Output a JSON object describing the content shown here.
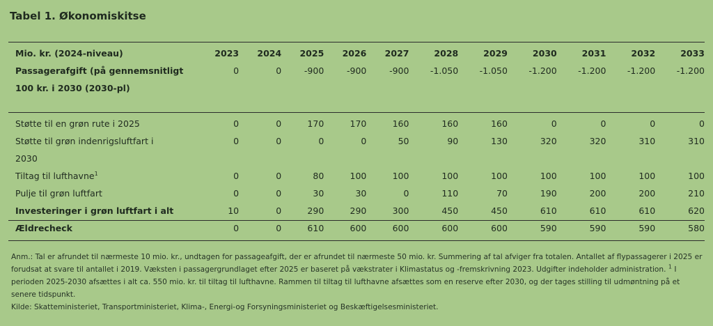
{
  "title": "Tabel 1. Økonomiskitse",
  "table": {
    "unit_label": "Mio. kr. (2024-niveau)",
    "years": [
      "2023",
      "2024",
      "2025",
      "2026",
      "2027",
      "2028",
      "2029",
      "2030",
      "2031",
      "2032",
      "2033"
    ],
    "rows": [
      {
        "label": "Passagerafgift (på gennemsnitligt",
        "label2": "100 kr. i 2030 (2030-pl)",
        "values": [
          "0",
          "0",
          "-900",
          "-900",
          "-900",
          "-1.050",
          "-1.050",
          "-1.200",
          "-1.200",
          "-1.200",
          "-1.200"
        ]
      },
      {
        "label": "Støtte til en grøn rute i 2025",
        "values": [
          "0",
          "0",
          "170",
          "170",
          "160",
          "160",
          "160",
          "0",
          "0",
          "0",
          "0"
        ]
      },
      {
        "label": "Støtte til grøn indenrigsluftfart i",
        "label2": "2030",
        "values": [
          "0",
          "0",
          "0",
          "0",
          "50",
          "90",
          "130",
          "320",
          "320",
          "310",
          "310"
        ]
      },
      {
        "label": "Tiltag til lufthavne",
        "sup": "1",
        "values": [
          "0",
          "0",
          "80",
          "100",
          "100",
          "100",
          "100",
          "100",
          "100",
          "100",
          "100"
        ]
      },
      {
        "label": "Pulje til grøn luftfart",
        "values": [
          "0",
          "0",
          "30",
          "30",
          "0",
          "110",
          "70",
          "190",
          "200",
          "200",
          "210"
        ]
      },
      {
        "label": "Investeringer i grøn luftfart i alt",
        "values": [
          "10",
          "0",
          "290",
          "290",
          "300",
          "450",
          "450",
          "610",
          "610",
          "610",
          "620"
        ]
      },
      {
        "label": "Ældrecheck",
        "values": [
          "0",
          "0",
          "610",
          "600",
          "600",
          "600",
          "600",
          "590",
          "590",
          "590",
          "580"
        ]
      }
    ]
  },
  "notes": {
    "anm": "Anm.: Tal er afrundet til nærmeste 10 mio. kr., undtagen for passageafgift, der er afrundet til nærmeste 50 mio. kr. Summering af tal afviger fra totalen. Antallet af flypassagerer i 2025 er forudsat at svare til antallet i 2019. Væksten i passagergrundlaget efter 2025 er baseret på vækstrater i Klimastatus og -fremskrivning 2023. Udgifter indeholder administration.",
    "fn_mark": "1",
    "fn_text": " I perioden 2025-2030 afsættes i alt ca. 550 mio. kr. til tiltag til lufthavne. Rammen til tiltag til lufthavne afsættes som en reserve efter 2030, og der tages stilling til udmøntning på et senere tidspunkt.",
    "kilde": "Kilde: Skatteministeriet, Transportministeriet, Klima-, Energi-og Forsyningsministeriet og Beskæftigelsesministeriet."
  }
}
